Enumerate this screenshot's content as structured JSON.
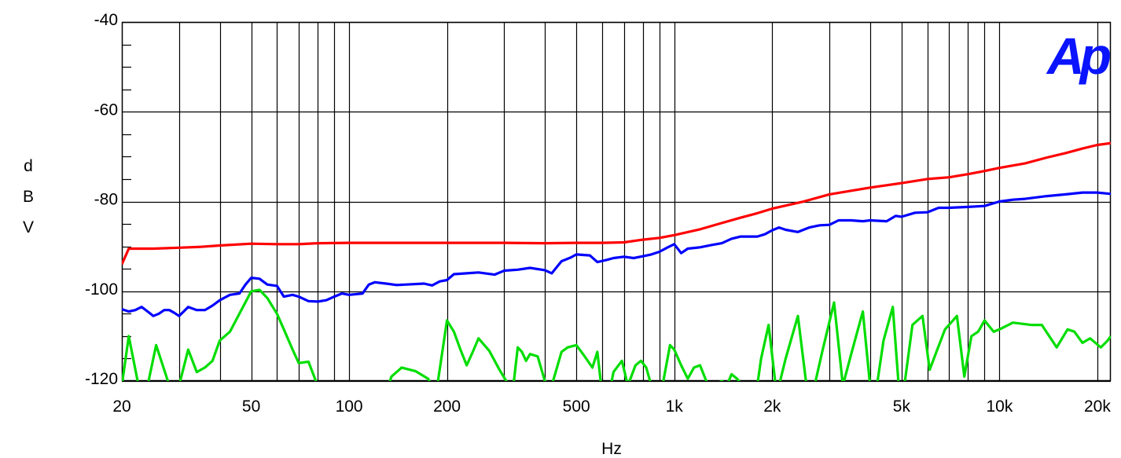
{
  "chart_data": {
    "type": "line",
    "title": "",
    "xlabel": "Hz",
    "ylabel": "dBV",
    "x_scale": "log",
    "xlim": [
      20,
      22000
    ],
    "ylim": [
      -120,
      -40
    ],
    "grid": true,
    "logo": "Ap",
    "x_ticks": [
      {
        "value": 20,
        "label": "20"
      },
      {
        "value": 50,
        "label": "50"
      },
      {
        "value": 100,
        "label": "100"
      },
      {
        "value": 200,
        "label": "200"
      },
      {
        "value": 500,
        "label": "500"
      },
      {
        "value": 1000,
        "label": "1k"
      },
      {
        "value": 2000,
        "label": "2k"
      },
      {
        "value": 5000,
        "label": "5k"
      },
      {
        "value": 10000,
        "label": "10k"
      },
      {
        "value": 20000,
        "label": "20k"
      }
    ],
    "y_ticks": [
      {
        "value": -40,
        "label": "-40"
      },
      {
        "value": -60,
        "label": "-60"
      },
      {
        "value": -80,
        "label": "-80"
      },
      {
        "value": -100,
        "label": "-100"
      },
      {
        "value": -120,
        "label": "-120"
      }
    ],
    "series": [
      {
        "color": "#ff0000",
        "points": [
          [
            20,
            -94
          ],
          [
            21,
            -90.5
          ],
          [
            25,
            -90.5
          ],
          [
            30,
            -90.3
          ],
          [
            35,
            -90.1
          ],
          [
            40,
            -89.8
          ],
          [
            50,
            -89.4
          ],
          [
            60,
            -89.5
          ],
          [
            70,
            -89.5
          ],
          [
            80,
            -89.3
          ],
          [
            100,
            -89.2
          ],
          [
            200,
            -89.2
          ],
          [
            300,
            -89.2
          ],
          [
            400,
            -89.3
          ],
          [
            500,
            -89.2
          ],
          [
            600,
            -89.2
          ],
          [
            700,
            -89.1
          ],
          [
            800,
            -88.5
          ],
          [
            900,
            -88.1
          ],
          [
            1000,
            -87.5
          ],
          [
            1200,
            -86.2
          ],
          [
            1400,
            -84.8
          ],
          [
            1600,
            -83.6
          ],
          [
            1800,
            -82.6
          ],
          [
            2000,
            -81.6
          ],
          [
            2500,
            -80
          ],
          [
            3000,
            -78.4
          ],
          [
            3500,
            -77.6
          ],
          [
            4000,
            -76.9
          ],
          [
            5000,
            -75.9
          ],
          [
            6000,
            -75
          ],
          [
            7000,
            -74.6
          ],
          [
            8000,
            -73.9
          ],
          [
            9000,
            -73.2
          ],
          [
            10000,
            -72.5
          ],
          [
            12000,
            -71.5
          ],
          [
            14000,
            -70.2
          ],
          [
            16000,
            -69.2
          ],
          [
            18000,
            -68.2
          ],
          [
            20000,
            -67.4
          ],
          [
            22000,
            -67
          ]
        ]
      },
      {
        "color": "#0000ff",
        "points": [
          [
            20,
            -104
          ],
          [
            21,
            -104.5
          ],
          [
            22,
            -104.2
          ],
          [
            23,
            -103.5
          ],
          [
            24,
            -104.5
          ],
          [
            25,
            -105.5
          ],
          [
            26,
            -105
          ],
          [
            27,
            -104.2
          ],
          [
            28,
            -104.2
          ],
          [
            29,
            -104.8
          ],
          [
            30,
            -105.5
          ],
          [
            31,
            -104.5
          ],
          [
            32,
            -103.5
          ],
          [
            34,
            -104.2
          ],
          [
            36,
            -104.2
          ],
          [
            38,
            -103.2
          ],
          [
            40,
            -102
          ],
          [
            43,
            -100.8
          ],
          [
            46,
            -100.5
          ],
          [
            48,
            -98.5
          ],
          [
            50,
            -97
          ],
          [
            53,
            -97.2
          ],
          [
            56,
            -98.5
          ],
          [
            60,
            -98.8
          ],
          [
            63,
            -101.2
          ],
          [
            67,
            -100.8
          ],
          [
            70,
            -101.2
          ],
          [
            75,
            -102.2
          ],
          [
            80,
            -102.3
          ],
          [
            85,
            -102
          ],
          [
            90,
            -101.2
          ],
          [
            95,
            -100.5
          ],
          [
            100,
            -100.8
          ],
          [
            110,
            -100.5
          ],
          [
            115,
            -98.5
          ],
          [
            120,
            -98
          ],
          [
            130,
            -98.3
          ],
          [
            140,
            -98.6
          ],
          [
            150,
            -98.5
          ],
          [
            170,
            -98.3
          ],
          [
            180,
            -98.7
          ],
          [
            190,
            -97.8
          ],
          [
            200,
            -97.5
          ],
          [
            210,
            -96.2
          ],
          [
            230,
            -96
          ],
          [
            250,
            -95.8
          ],
          [
            280,
            -96.3
          ],
          [
            300,
            -95.4
          ],
          [
            330,
            -95.2
          ],
          [
            360,
            -94.8
          ],
          [
            400,
            -95.3
          ],
          [
            420,
            -96
          ],
          [
            450,
            -93.3
          ],
          [
            480,
            -92.5
          ],
          [
            500,
            -91.8
          ],
          [
            550,
            -92
          ],
          [
            580,
            -93.5
          ],
          [
            620,
            -93
          ],
          [
            650,
            -92.6
          ],
          [
            700,
            -92.3
          ],
          [
            750,
            -92.6
          ],
          [
            800,
            -92.2
          ],
          [
            850,
            -91.8
          ],
          [
            900,
            -91.2
          ],
          [
            950,
            -90.3
          ],
          [
            1000,
            -89.5
          ],
          [
            1050,
            -91.5
          ],
          [
            1100,
            -90.5
          ],
          [
            1200,
            -90.2
          ],
          [
            1300,
            -89.7
          ],
          [
            1400,
            -89.3
          ],
          [
            1500,
            -88.3
          ],
          [
            1600,
            -87.8
          ],
          [
            1800,
            -87.8
          ],
          [
            1900,
            -87.3
          ],
          [
            2000,
            -86.4
          ],
          [
            2100,
            -85.8
          ],
          [
            2200,
            -86.3
          ],
          [
            2400,
            -86.8
          ],
          [
            2600,
            -85.8
          ],
          [
            2800,
            -85.3
          ],
          [
            3000,
            -85.2
          ],
          [
            3200,
            -84.2
          ],
          [
            3500,
            -84.2
          ],
          [
            3800,
            -84.4
          ],
          [
            4000,
            -84.2
          ],
          [
            4500,
            -84.4
          ],
          [
            4800,
            -83.2
          ],
          [
            5000,
            -83.4
          ],
          [
            5500,
            -82.5
          ],
          [
            6000,
            -82.4
          ],
          [
            6500,
            -81.4
          ],
          [
            7000,
            -81.4
          ],
          [
            8000,
            -81.2
          ],
          [
            9000,
            -81
          ],
          [
            10000,
            -80
          ],
          [
            11000,
            -79.6
          ],
          [
            12000,
            -79.4
          ],
          [
            14000,
            -78.8
          ],
          [
            16000,
            -78.4
          ],
          [
            18000,
            -78
          ],
          [
            20000,
            -78
          ],
          [
            22000,
            -78.3
          ]
        ]
      },
      {
        "color": "#00dd00",
        "points": [
          [
            20,
            -121
          ],
          [
            21,
            -110
          ],
          [
            22.5,
            -121
          ],
          [
            24,
            -121
          ],
          [
            25.5,
            -112
          ],
          [
            28,
            -121
          ],
          [
            30,
            -121
          ],
          [
            32,
            -113
          ],
          [
            34,
            -118
          ],
          [
            36,
            -117
          ],
          [
            38,
            -115.5
          ],
          [
            40,
            -111
          ],
          [
            43,
            -109
          ],
          [
            46,
            -105
          ],
          [
            50,
            -100
          ],
          [
            53,
            -99.7
          ],
          [
            56,
            -101.5
          ],
          [
            60,
            -105
          ],
          [
            63,
            -108.5
          ],
          [
            67,
            -113
          ],
          [
            70,
            -116
          ],
          [
            75,
            -115.7
          ],
          [
            80,
            -121
          ],
          [
            100,
            -130
          ],
          [
            120,
            -130
          ],
          [
            135,
            -119
          ],
          [
            145,
            -117
          ],
          [
            160,
            -117.8
          ],
          [
            175,
            -119.5
          ],
          [
            185,
            -123
          ],
          [
            200,
            -106.5
          ],
          [
            210,
            -109
          ],
          [
            220,
            -113
          ],
          [
            230,
            -116.5
          ],
          [
            240,
            -113.5
          ],
          [
            250,
            -110.5
          ],
          [
            270,
            -113.3
          ],
          [
            290,
            -117.5
          ],
          [
            310,
            -121
          ],
          [
            320,
            -121
          ],
          [
            330,
            -112.5
          ],
          [
            340,
            -113.5
          ],
          [
            350,
            -115.5
          ],
          [
            360,
            -114
          ],
          [
            380,
            -114.5
          ],
          [
            400,
            -120
          ],
          [
            420,
            -121
          ],
          [
            450,
            -113.5
          ],
          [
            470,
            -112.5
          ],
          [
            500,
            -112
          ],
          [
            530,
            -114.5
          ],
          [
            560,
            -117
          ],
          [
            580,
            -113.5
          ],
          [
            600,
            -123
          ],
          [
            630,
            -123
          ],
          [
            650,
            -118
          ],
          [
            690,
            -115.5
          ],
          [
            720,
            -121
          ],
          [
            760,
            -116.5
          ],
          [
            790,
            -115.5
          ],
          [
            820,
            -117
          ],
          [
            850,
            -121
          ],
          [
            880,
            -125
          ],
          [
            920,
            -121
          ],
          [
            970,
            -112
          ],
          [
            1000,
            -113
          ],
          [
            1050,
            -116.5
          ],
          [
            1100,
            -119.5
          ],
          [
            1150,
            -117
          ],
          [
            1200,
            -116.5
          ],
          [
            1270,
            -121
          ],
          [
            1320,
            -121
          ],
          [
            1400,
            -120
          ],
          [
            1450,
            -121
          ],
          [
            1500,
            -118.5
          ],
          [
            1560,
            -119.5
          ],
          [
            1620,
            -121
          ],
          [
            1700,
            -124
          ],
          [
            1800,
            -121
          ],
          [
            1850,
            -115
          ],
          [
            1950,
            -107.5
          ],
          [
            2050,
            -121
          ],
          [
            2100,
            -121
          ],
          [
            2200,
            -115
          ],
          [
            2400,
            -105.5
          ],
          [
            2550,
            -121
          ],
          [
            2700,
            -121
          ],
          [
            2850,
            -113.5
          ],
          [
            3100,
            -102.5
          ],
          [
            3300,
            -121
          ],
          [
            3500,
            -114
          ],
          [
            3800,
            -104.5
          ],
          [
            4000,
            -121
          ],
          [
            4200,
            -121
          ],
          [
            4400,
            -111
          ],
          [
            4700,
            -103.5
          ],
          [
            4900,
            -121
          ],
          [
            5100,
            -121
          ],
          [
            5400,
            -107.5
          ],
          [
            5800,
            -105.5
          ],
          [
            6100,
            -117.5
          ],
          [
            6400,
            -113.5
          ],
          [
            6800,
            -108.5
          ],
          [
            7400,
            -105.5
          ],
          [
            7800,
            -119
          ],
          [
            8200,
            -110
          ],
          [
            8600,
            -109
          ],
          [
            9000,
            -106.5
          ],
          [
            9600,
            -109
          ],
          [
            10000,
            -108.5
          ],
          [
            11000,
            -107
          ],
          [
            12500,
            -107.5
          ],
          [
            13500,
            -107.5
          ],
          [
            15000,
            -112.5
          ],
          [
            16200,
            -108.5
          ],
          [
            17000,
            -109
          ],
          [
            18000,
            -111.5
          ],
          [
            19000,
            -110.5
          ],
          [
            20500,
            -112.5
          ],
          [
            21500,
            -111
          ],
          [
            22000,
            -110
          ]
        ]
      }
    ]
  }
}
